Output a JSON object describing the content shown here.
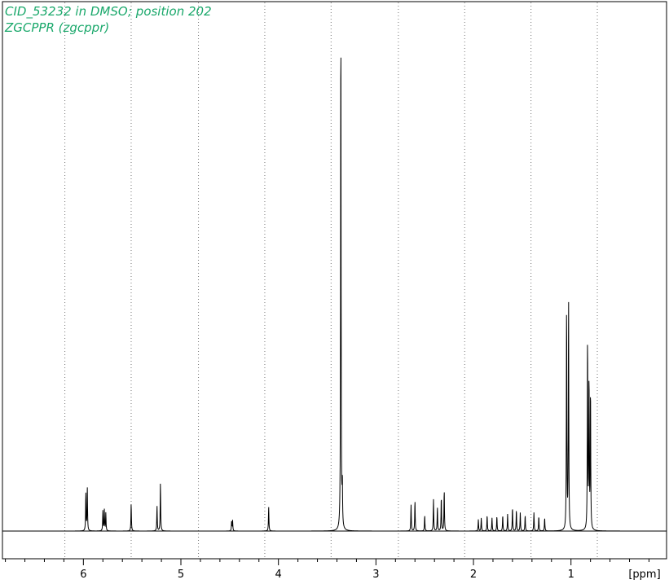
{
  "chart_data": {
    "type": "line",
    "title_lines": [
      "CID_53232 in DMSO; position 202",
      "ZGCPPR (zgcppr)"
    ],
    "xlabel": "[ppm]",
    "ylabel": "",
    "x_reversed": true,
    "xlim": [
      6.83,
      0.02
    ],
    "ylim": [
      -0.02,
      1.0
    ],
    "x_ticks": [
      {
        "value": 6,
        "label": "6"
      },
      {
        "value": 5,
        "label": "5"
      },
      {
        "value": 4,
        "label": "4"
      },
      {
        "value": 3,
        "label": "3"
      },
      {
        "value": 2,
        "label": "2"
      },
      {
        "value": 1,
        "label": "1"
      }
    ],
    "minor_tick_step": 0.2,
    "gridlines_x": [
      6.19,
      5.51,
      4.82,
      4.14,
      3.46,
      2.77,
      2.09,
      1.41,
      0.73
    ],
    "grid": true,
    "line_color": "#000000",
    "text_color": "#1aa86b",
    "peaks": [
      {
        "ppm": 5.975,
        "height": 0.072
      },
      {
        "ppm": 5.96,
        "height": 0.082
      },
      {
        "ppm": 5.8,
        "height": 0.038
      },
      {
        "ppm": 5.785,
        "height": 0.04
      },
      {
        "ppm": 5.77,
        "height": 0.034
      },
      {
        "ppm": 5.51,
        "height": 0.052
      },
      {
        "ppm": 5.245,
        "height": 0.048
      },
      {
        "ppm": 5.21,
        "height": 0.092
      },
      {
        "ppm": 4.48,
        "height": 0.018
      },
      {
        "ppm": 4.47,
        "height": 0.02
      },
      {
        "ppm": 4.1,
        "height": 0.046
      },
      {
        "ppm": 3.36,
        "height": 1.0
      },
      {
        "ppm": 3.345,
        "height": 0.08
      },
      {
        "ppm": 2.64,
        "height": 0.05
      },
      {
        "ppm": 2.6,
        "height": 0.058
      },
      {
        "ppm": 2.5,
        "height": 0.03
      },
      {
        "ppm": 2.41,
        "height": 0.06
      },
      {
        "ppm": 2.37,
        "height": 0.045
      },
      {
        "ppm": 2.33,
        "height": 0.065
      },
      {
        "ppm": 2.3,
        "height": 0.078
      },
      {
        "ppm": 1.95,
        "height": 0.022
      },
      {
        "ppm": 1.92,
        "height": 0.025
      },
      {
        "ppm": 1.86,
        "height": 0.03
      },
      {
        "ppm": 1.81,
        "height": 0.025
      },
      {
        "ppm": 1.76,
        "height": 0.028
      },
      {
        "ppm": 1.7,
        "height": 0.03
      },
      {
        "ppm": 1.65,
        "height": 0.032
      },
      {
        "ppm": 1.6,
        "height": 0.045
      },
      {
        "ppm": 1.56,
        "height": 0.04
      },
      {
        "ppm": 1.52,
        "height": 0.035
      },
      {
        "ppm": 1.47,
        "height": 0.03
      },
      {
        "ppm": 1.38,
        "height": 0.035
      },
      {
        "ppm": 1.33,
        "height": 0.028
      },
      {
        "ppm": 1.27,
        "height": 0.025
      },
      {
        "ppm": 1.045,
        "height": 0.43
      },
      {
        "ppm": 1.025,
        "height": 0.44
      },
      {
        "ppm": 0.83,
        "height": 0.37
      },
      {
        "ppm": 0.815,
        "height": 0.29
      },
      {
        "ppm": 0.8,
        "height": 0.27
      }
    ]
  }
}
